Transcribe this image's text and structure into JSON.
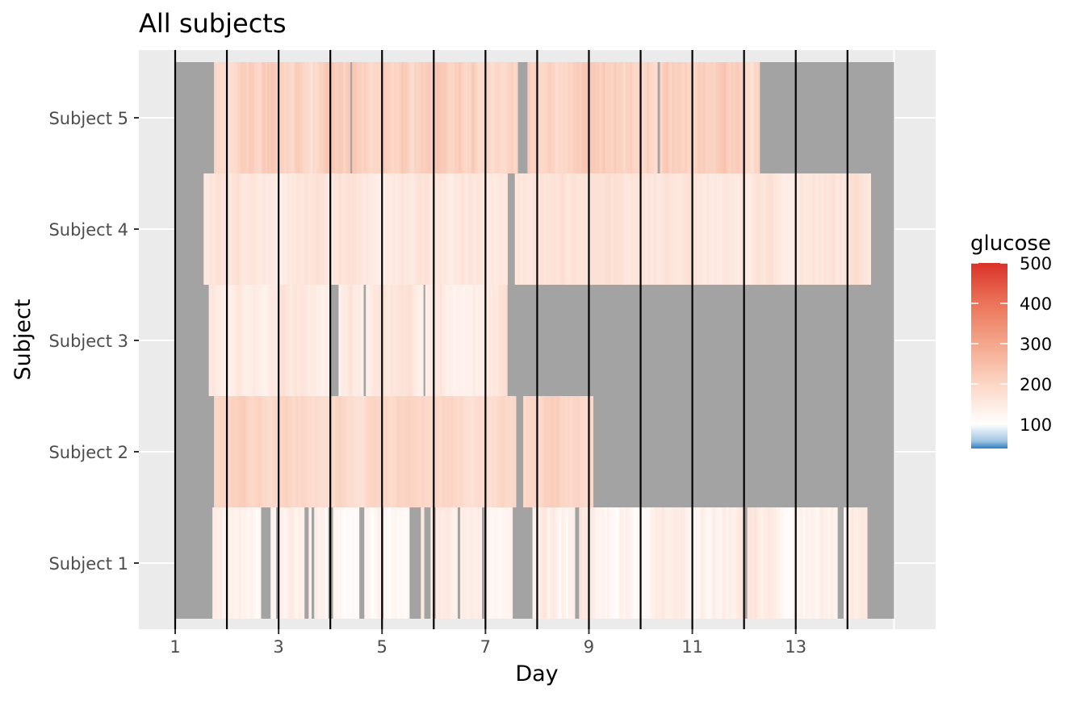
{
  "chart_data": {
    "type": "heatmap",
    "title": "All subjects",
    "xlabel": "Day",
    "ylabel": "Subject",
    "xlim": [
      0.7,
      16
    ],
    "x_ticks": [
      1,
      3,
      5,
      7,
      9,
      11,
      13
    ],
    "day_lines": [
      1,
      2,
      3,
      4,
      5,
      6,
      7,
      8,
      9,
      10,
      11,
      12,
      13,
      14
    ],
    "rows": [
      "Subject 1",
      "Subject 2",
      "Subject 3",
      "Subject 4",
      "Subject 5"
    ],
    "plot_end_day": 14.9,
    "na_color": "#a3a3a3",
    "legend": {
      "title": "glucose",
      "ticks": [
        100,
        200,
        300,
        400,
        500
      ],
      "min": 40,
      "max": 500,
      "position": "right"
    },
    "subjects": [
      {
        "name": "Subject 1",
        "start": 1.72,
        "end": 14.38,
        "base_glucose": 130,
        "var_glucose": 45,
        "gaps": [
          [
            2.62,
            2.84
          ],
          [
            2.9,
            2.98
          ],
          [
            3.48,
            3.55
          ],
          [
            3.62,
            3.68
          ],
          [
            3.95,
            4.02
          ],
          [
            4.55,
            4.62
          ],
          [
            4.95,
            5.02
          ],
          [
            5.5,
            5.72
          ],
          [
            5.8,
            5.9
          ],
          [
            5.95,
            6.02
          ],
          [
            6.45,
            6.5
          ],
          [
            6.9,
            6.98
          ],
          [
            7.52,
            7.88
          ],
          [
            8.7,
            8.78
          ],
          [
            12.0,
            12.05
          ],
          [
            13.8,
            13.9
          ]
        ]
      },
      {
        "name": "Subject 2",
        "start": 1.75,
        "end": 9.08,
        "base_glucose": 195,
        "var_glucose": 30,
        "gaps": [
          [
            7.58,
            7.68
          ]
        ]
      },
      {
        "name": "Subject 3",
        "start": 1.65,
        "end": 7.42,
        "base_glucose": 150,
        "var_glucose": 40,
        "gaps": [
          [
            4.0,
            4.12
          ],
          [
            4.6,
            4.65
          ],
          [
            5.75,
            5.8
          ]
        ]
      },
      {
        "name": "Subject 4",
        "start": 1.55,
        "end": 14.45,
        "base_glucose": 160,
        "var_glucose": 30,
        "gaps": [
          [
            7.42,
            7.52
          ]
        ]
      },
      {
        "name": "Subject 5",
        "start": 1.75,
        "end": 12.3,
        "base_glucose": 210,
        "var_glucose": 55,
        "gaps": [
          [
            4.35,
            4.42
          ],
          [
            4.6,
            4.65
          ],
          [
            7.62,
            7.78
          ],
          [
            10.28,
            10.35
          ]
        ]
      }
    ]
  }
}
